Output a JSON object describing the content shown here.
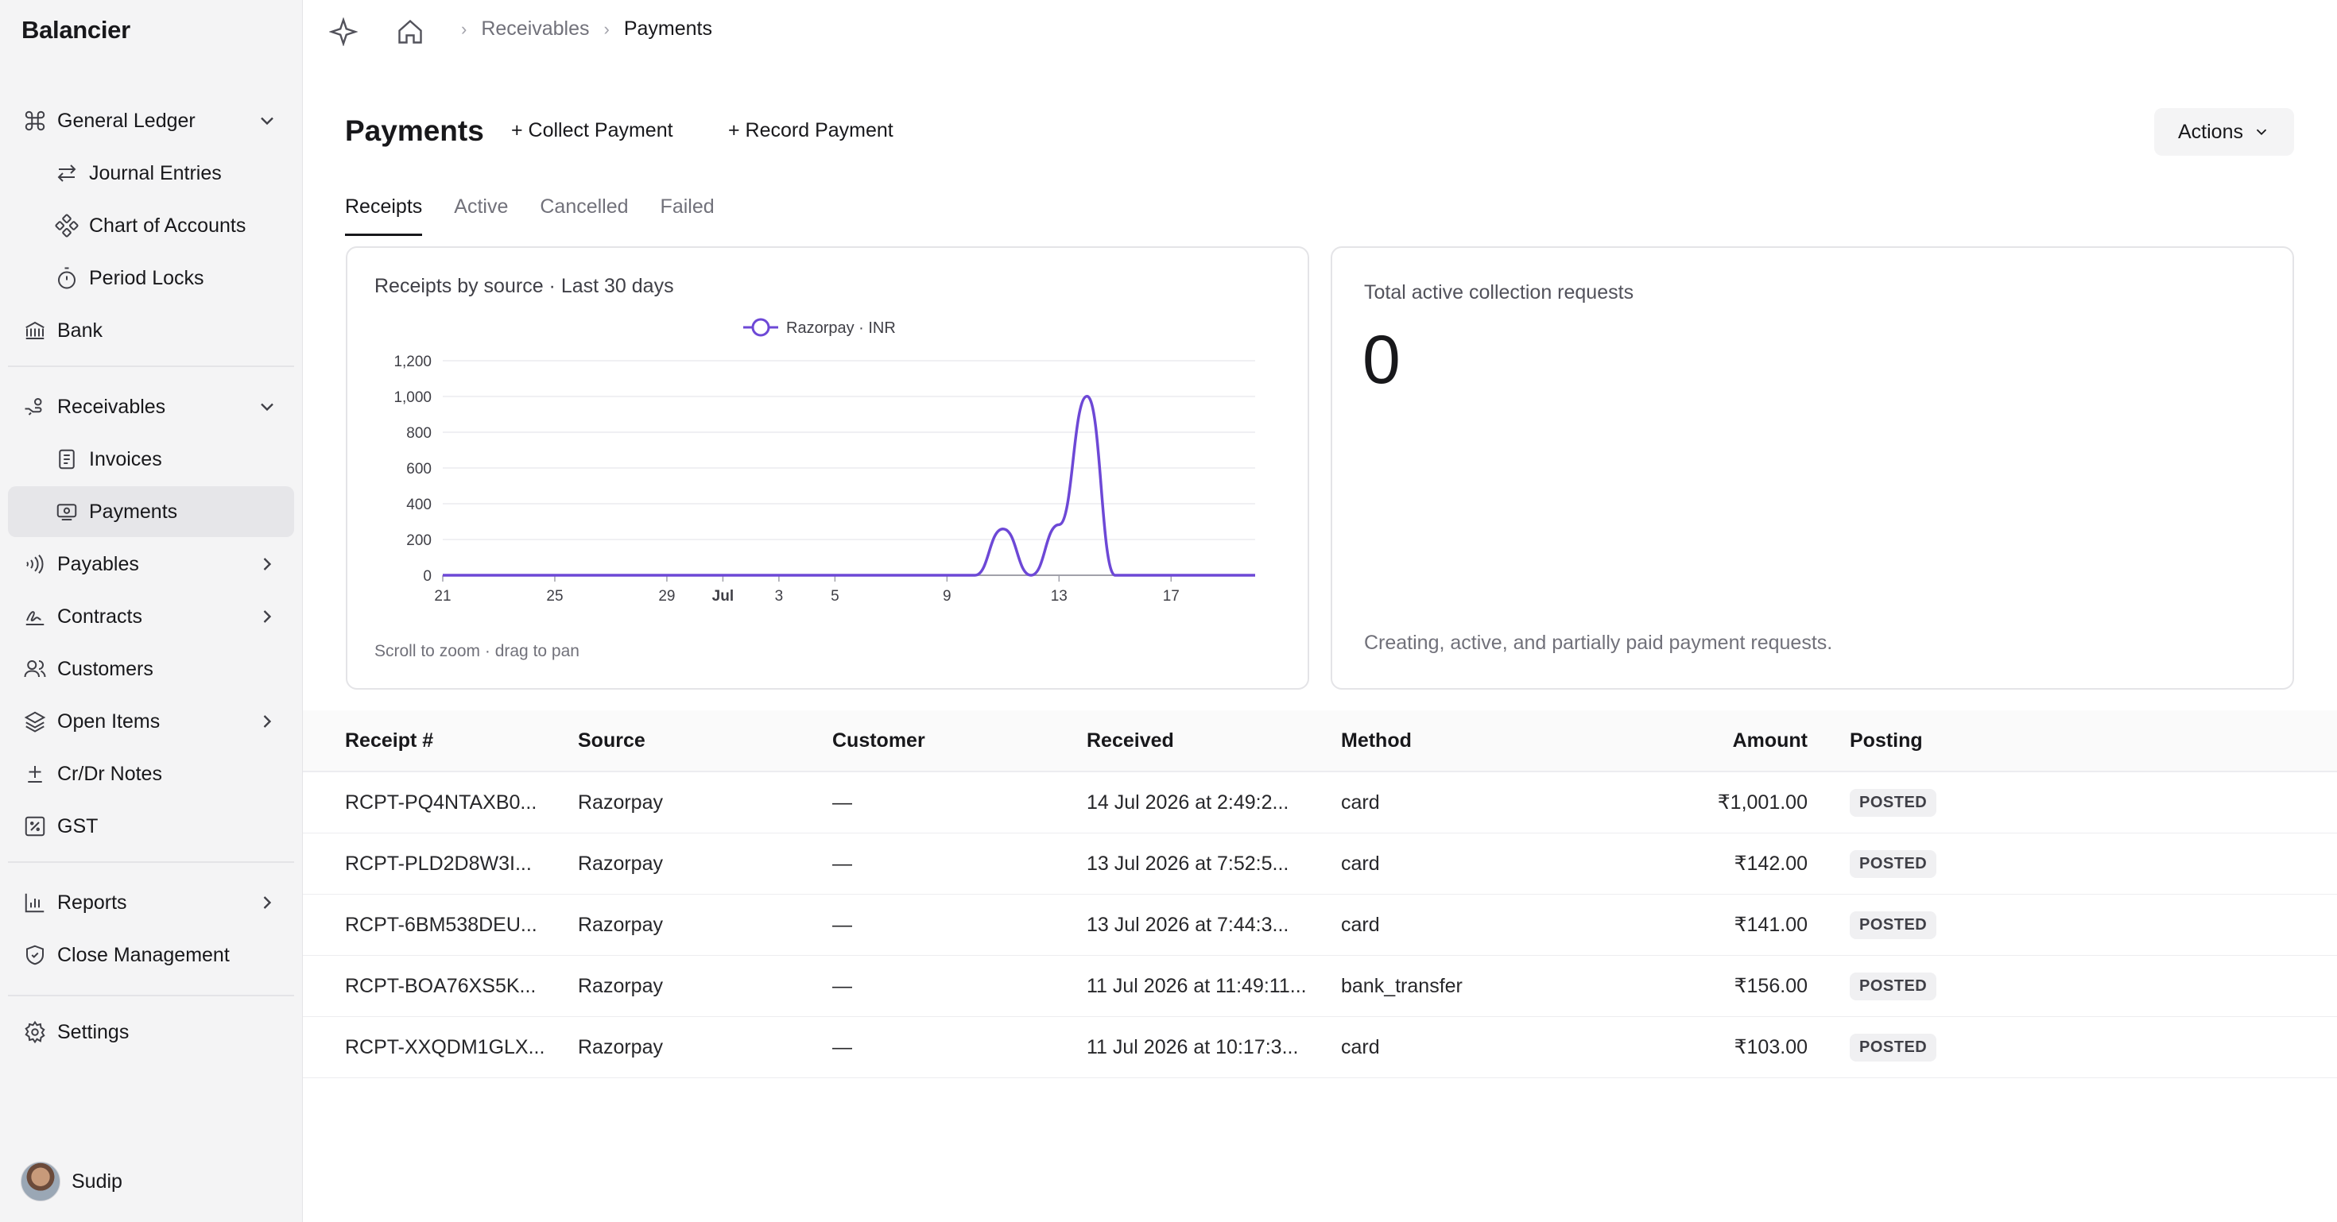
{
  "app": {
    "brand": "Balancier"
  },
  "sidebar": {
    "items": [
      {
        "label": "General Ledger"
      },
      {
        "label": "Journal Entries"
      },
      {
        "label": "Chart of Accounts"
      },
      {
        "label": "Period Locks"
      },
      {
        "label": "Bank"
      },
      {
        "label": "Receivables"
      },
      {
        "label": "Invoices"
      },
      {
        "label": "Payments"
      },
      {
        "label": "Payables"
      },
      {
        "label": "Contracts"
      },
      {
        "label": "Customers"
      },
      {
        "label": "Open Items"
      },
      {
        "label": "Cr/Dr Notes"
      },
      {
        "label": "GST"
      },
      {
        "label": "Reports"
      },
      {
        "label": "Close Management"
      },
      {
        "label": "Settings"
      }
    ],
    "user": {
      "name": "Sudip"
    }
  },
  "breadcrumb": {
    "parent": "Receivables",
    "current": "Payments"
  },
  "header": {
    "title": "Payments",
    "collect_label": "+ Collect Payment",
    "record_label": "+ Record Payment",
    "actions_label": "Actions"
  },
  "tabs": [
    "Receipts",
    "Active",
    "Cancelled",
    "Failed"
  ],
  "chart_card": {
    "title": "Receipts by source · Last 30 days",
    "hint": "Scroll to zoom · drag to pan"
  },
  "stat_card": {
    "label": "Total active collection requests",
    "value": "0",
    "footnote": "Creating, active, and partially paid payment requests."
  },
  "chart_data": {
    "type": "line",
    "title": "Receipts by source · Last 30 days",
    "xlabel": "",
    "ylabel": "",
    "x_ticks": [
      "21",
      "25",
      "29",
      "Jul",
      "3",
      "5",
      "9",
      "13",
      "17"
    ],
    "y_ticks": [
      0,
      200,
      400,
      600,
      800,
      1000,
      1200
    ],
    "ylim": [
      0,
      1200
    ],
    "xlim": [
      "Jun 21",
      "Jul 20"
    ],
    "legend_position": "top-center",
    "grid": true,
    "series": [
      {
        "name": "Razorpay · INR",
        "color": "#6d48d6",
        "points": [
          [
            "Jun 21",
            0
          ],
          [
            "Jul 1",
            0
          ],
          [
            "Jul 8",
            0
          ],
          [
            "Jul 10",
            0
          ],
          [
            "Jul 11",
            259
          ],
          [
            "Jul 12",
            0
          ],
          [
            "Jul 13",
            283
          ],
          [
            "Jul 14",
            1001
          ],
          [
            "Jul 15",
            0
          ],
          [
            "Jul 20",
            0
          ]
        ]
      }
    ]
  },
  "table": {
    "columns": [
      "Receipt #",
      "Source",
      "Customer",
      "Received",
      "Method",
      "Amount",
      "Posting"
    ],
    "rows": [
      [
        "RCPT-PQ4NTAXB0...",
        "Razorpay",
        "—",
        "14 Jul 2026 at 2:49:2...",
        "card",
        "₹1,001.00",
        "POSTED"
      ],
      [
        "RCPT-PLD2D8W3I...",
        "Razorpay",
        "—",
        "13 Jul 2026 at 7:52:5...",
        "card",
        "₹142.00",
        "POSTED"
      ],
      [
        "RCPT-6BM538DEU...",
        "Razorpay",
        "—",
        "13 Jul 2026 at 7:44:3...",
        "card",
        "₹141.00",
        "POSTED"
      ],
      [
        "RCPT-BOA76XS5K...",
        "Razorpay",
        "—",
        "11 Jul 2026 at 11:49:11...",
        "bank_transfer",
        "₹156.00",
        "POSTED"
      ],
      [
        "RCPT-XXQDM1GLX...",
        "Razorpay",
        "—",
        "11 Jul 2026 at 10:17:3...",
        "card",
        "₹103.00",
        "POSTED"
      ]
    ]
  }
}
